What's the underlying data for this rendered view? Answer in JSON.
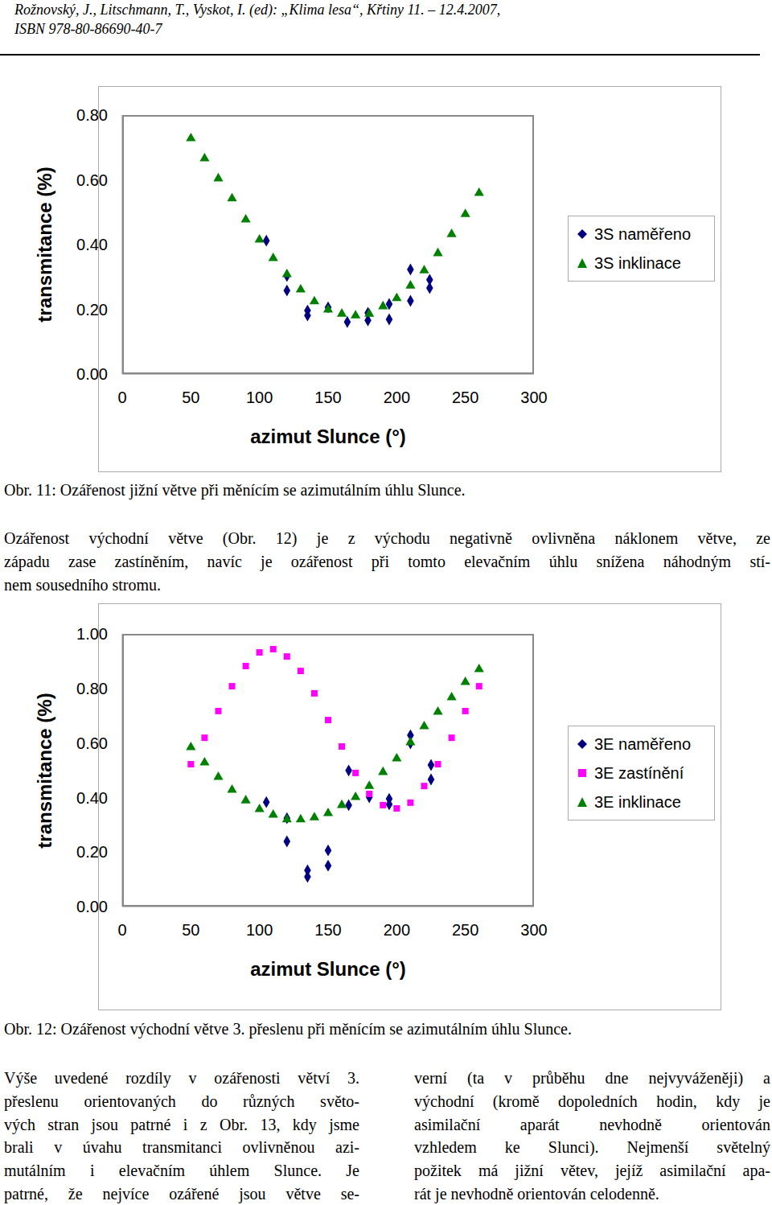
{
  "header": [
    "Rožnovský, J., Litschmann, T., Vyskot, I. (ed): „Klima lesa“, Křtiny 11. – 12.4.2007,",
    "ISBN 978-80-86690-40-7"
  ],
  "chart_data": [
    {
      "type": "scatter",
      "xlabel": "azimut Slunce (°)",
      "ylabel": "transmitance (%)",
      "xlim": [
        0,
        300
      ],
      "ylim": [
        0,
        0.8
      ],
      "xticks": [
        0,
        50,
        100,
        150,
        200,
        250,
        300
      ],
      "yticks": [
        {
          "value": 0,
          "label": "0.00"
        },
        {
          "value": 0.2,
          "label": "0.20"
        },
        {
          "value": 0.4,
          "label": "0.40"
        },
        {
          "value": 0.6,
          "label": "0.60"
        },
        {
          "value": 0.8,
          "label": "0.80"
        }
      ],
      "legend": "right",
      "series": [
        {
          "name": "3S naměřeno",
          "color": "#000080",
          "marker": "diamond",
          "x": [
            105,
            120,
            120,
            135,
            135,
            150,
            164,
            179,
            179,
            194.5,
            194.5,
            210,
            210,
            224,
            224
          ],
          "values": [
            0.412,
            0.303,
            0.258,
            0.196,
            0.181,
            0.206,
            0.161,
            0.189,
            0.166,
            0.169,
            0.216,
            0.323,
            0.226,
            0.291,
            0.266
          ]
        },
        {
          "name": "3S inklinace",
          "color": "#008000",
          "marker": "triangle",
          "x": [
            50,
            60,
            70,
            80,
            90,
            100,
            110,
            120,
            130,
            140,
            150,
            160,
            170,
            180,
            190,
            200,
            210,
            220,
            230,
            240,
            250,
            260
          ],
          "values": [
            0.728,
            0.666,
            0.604,
            0.542,
            0.477,
            0.415,
            0.358,
            0.308,
            0.261,
            0.224,
            0.199,
            0.186,
            0.181,
            0.186,
            0.209,
            0.234,
            0.273,
            0.32,
            0.373,
            0.432,
            0.494,
            0.559
          ]
        }
      ]
    },
    {
      "type": "scatter",
      "xlabel": "azimut Slunce (°)",
      "ylabel": "transmitance (%)",
      "xlim": [
        0,
        300
      ],
      "ylim": [
        0,
        1
      ],
      "xticks": [
        0,
        50,
        100,
        150,
        200,
        250,
        300
      ],
      "yticks": [
        {
          "value": 0,
          "label": "0.00"
        },
        {
          "value": 0.2,
          "label": "0.20"
        },
        {
          "value": 0.4,
          "label": "0.40"
        },
        {
          "value": 0.6,
          "label": "0.60"
        },
        {
          "value": 0.8,
          "label": "0.80"
        },
        {
          "value": 1,
          "label": "1.00"
        }
      ],
      "legend": "right",
      "series": [
        {
          "name": "3E naměřeno",
          "color": "#000080",
          "marker": "diamond",
          "x": [
            105,
            120,
            120,
            135,
            135,
            150,
            150,
            165,
            165,
            180,
            194.5,
            194.5,
            210,
            210,
            225,
            225
          ],
          "values": [
            0.383,
            0.324,
            0.239,
            0.133,
            0.109,
            0.206,
            0.15,
            0.499,
            0.372,
            0.401,
            0.395,
            0.375,
            0.628,
            0.599,
            0.519,
            0.466
          ]
        },
        {
          "name": "3E zastínění",
          "color": "#ff00ff",
          "marker": "square",
          "x": [
            50,
            60,
            70,
            80,
            90,
            100,
            110,
            120,
            130,
            140,
            150,
            160,
            170,
            180,
            190,
            200,
            210,
            220,
            230,
            240,
            250,
            260
          ],
          "values": [
            0.522,
            0.619,
            0.717,
            0.808,
            0.882,
            0.932,
            0.944,
            0.917,
            0.864,
            0.782,
            0.684,
            0.587,
            0.49,
            0.413,
            0.372,
            0.36,
            0.381,
            0.442,
            0.522,
            0.619,
            0.717,
            0.808
          ]
        },
        {
          "name": "3E inklinace",
          "color": "#008000",
          "marker": "triangle",
          "x": [
            50,
            60,
            70,
            80,
            90,
            100,
            110,
            120,
            130,
            140,
            150,
            160,
            170,
            180,
            190,
            200,
            210,
            220,
            230,
            240,
            250,
            260
          ],
          "values": [
            0.584,
            0.528,
            0.475,
            0.428,
            0.389,
            0.357,
            0.336,
            0.319,
            0.319,
            0.327,
            0.342,
            0.372,
            0.401,
            0.442,
            0.493,
            0.543,
            0.602,
            0.661,
            0.714,
            0.767,
            0.823,
            0.87
          ]
        }
      ]
    }
  ],
  "captions": [
    "Obr. 11: Ozářenost jižní větve při měnícím se azimutálním úhlu Slunce.",
    "Obr. 12: Ozářenost východní větve 3. přeslenu při měnícím se azimutálním úhlu Slunce."
  ],
  "paragraph": [
    "Ozářenost východní větve (Obr. 12) je z východu negativně ovlivněna náklonem větve, ze",
    "západu zase zastíněním, navíc je ozářenost při tomto elevačním úhlu snížena náhodným stí-",
    "nem sousedního stromu."
  ],
  "columns": [
    [
      "Výše uvedené rozdíly v ozářenosti větví 3.",
      "přeslenu orientovaných do různých světo-",
      "vých stran jsou patrné i z Obr. 13, kdy jsme",
      "brali v úvahu transmitanci ovlivněnou azi-",
      "mutálním i elevačním úhlem Slunce. Je",
      "patrné, že nejvíce ozářené jsou větve se-"
    ],
    [
      "verní (ta v průběhu dne nejvyváženěji) a",
      "východní (kromě dopoledních hodin, kdy je",
      "asimilační aparát nevhodně orientován",
      "vzhledem ke Slunci). Nejmenší světelný",
      "požitek má jižní větev, jejíž asimilační apa-",
      "rát je nevhodně orientován celodenně."
    ]
  ]
}
